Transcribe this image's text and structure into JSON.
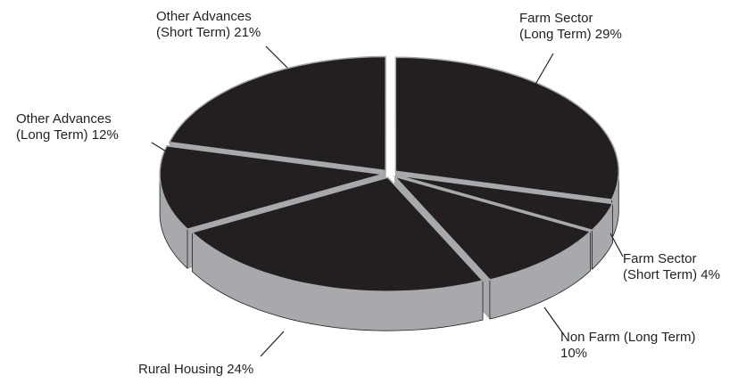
{
  "chart_data": {
    "type": "pie",
    "categories": [
      "Farm Sector (Long Term)",
      "Farm Sector (Short Term)",
      "Non Farm (Long Term)",
      "Rural Housing",
      "Other Advances (Long Term)",
      "Other Advances (Short Term)"
    ],
    "values": [
      29,
      4,
      10,
      24,
      12,
      21
    ],
    "value_labels": [
      "29%",
      "4%",
      "10%",
      "24%",
      "12%",
      "21%"
    ],
    "colors": {
      "top": "#231f20",
      "side": "#a7a9ac"
    }
  }
}
